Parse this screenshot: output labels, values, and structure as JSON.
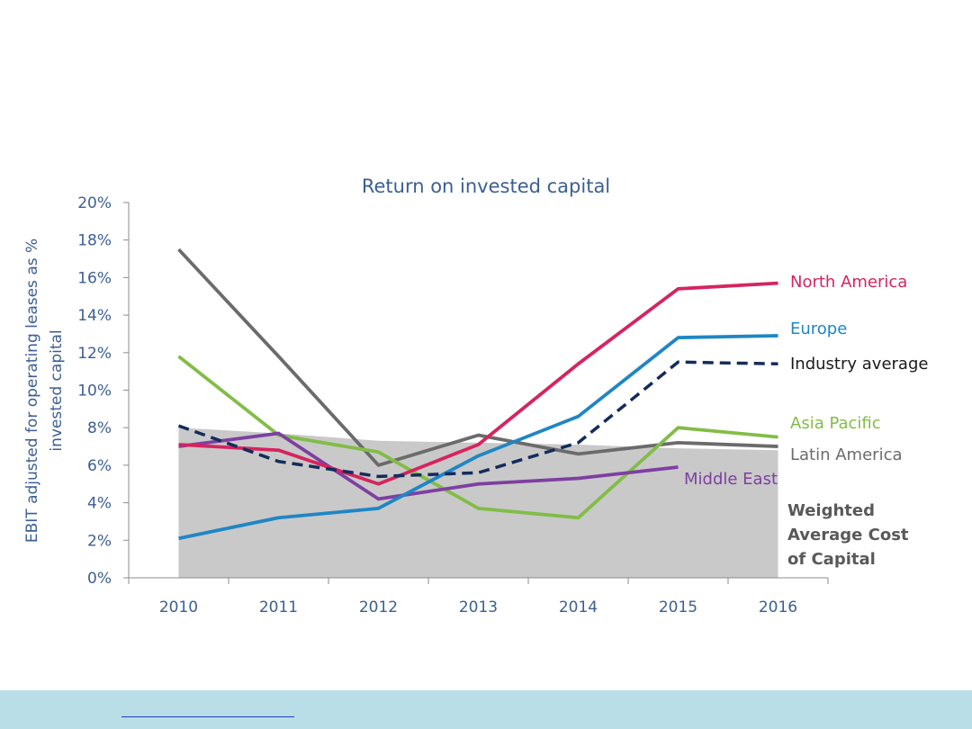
{
  "chart_data": {
    "type": "line",
    "title": "Return on invested capital",
    "ylabel": "EBIT adjusted for operating leases as % invested capital",
    "ylabel_lines": [
      "EBIT adjusted for operating leases as %",
      "invested capital"
    ],
    "xlabel": "",
    "categories": [
      "2010",
      "2011",
      "2012",
      "2013",
      "2014",
      "2015",
      "2016"
    ],
    "ylim": [
      0,
      20
    ],
    "yticks": [
      "0%",
      "2%",
      "4%",
      "6%",
      "8%",
      "10%",
      "12%",
      "14%",
      "16%",
      "18%",
      "20%"
    ],
    "grid": false,
    "legend": "inline labels at right of lines",
    "area": {
      "name_lines": [
        "Weighted",
        "Average Cost",
        "of Capital"
      ],
      "color": "#c9c9c9",
      "label_color": "#595959",
      "values": [
        8.0,
        7.7,
        7.3,
        7.2,
        7.1,
        6.9,
        6.8
      ]
    },
    "series": [
      {
        "name": "North America",
        "color": "#d6245f",
        "dashed": false,
        "values": [
          7.1,
          6.8,
          5.0,
          7.1,
          11.4,
          15.4,
          15.7
        ]
      },
      {
        "name": "Europe",
        "color": "#1f86c4",
        "dashed": false,
        "values": [
          2.1,
          3.2,
          3.7,
          6.5,
          8.6,
          12.8,
          12.9
        ]
      },
      {
        "name": "Industry average",
        "color": "#132c5c",
        "dashed": true,
        "values": [
          8.1,
          6.2,
          5.4,
          5.6,
          7.2,
          11.5,
          11.4
        ]
      },
      {
        "name": "Asia Pacific",
        "color": "#82bd47",
        "dashed": false,
        "values": [
          11.8,
          7.6,
          6.7,
          3.7,
          3.2,
          8.0,
          7.5
        ]
      },
      {
        "name": "Latin America",
        "color": "#6b6b6b",
        "dashed": false,
        "values": [
          17.5,
          11.8,
          6.0,
          7.6,
          6.6,
          7.2,
          7.0
        ]
      },
      {
        "name": "Middle East",
        "color": "#7e3fa1",
        "dashed": false,
        "values": [
          7.0,
          7.7,
          4.2,
          5.0,
          5.3,
          5.9,
          null
        ]
      }
    ],
    "label_colors": {
      "North America": "#d6245f",
      "Europe": "#1f86c4",
      "Industry average": "#1a1a1a",
      "Asia Pacific": "#82bd47",
      "Latin America": "#6b6b6b",
      "Middle East": "#7e3fa1"
    },
    "axis_text_color": "#3b5f93"
  },
  "footer": {
    "link_text": ""
  }
}
